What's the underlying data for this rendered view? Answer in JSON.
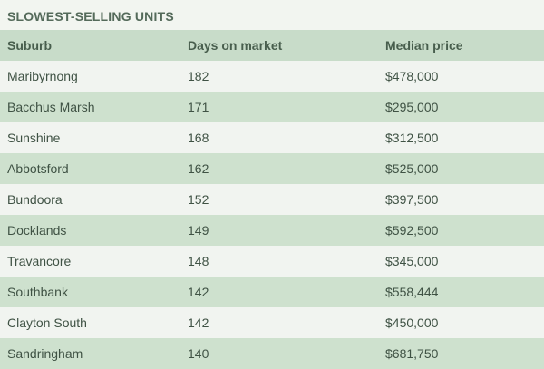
{
  "title": "SLOWEST-SELLING UNITS",
  "table": {
    "headers": [
      "Suburb",
      "Days on market",
      "Median price"
    ],
    "rows": [
      [
        "Maribyrnong",
        "182",
        "$478,000"
      ],
      [
        "Bacchus Marsh",
        "171",
        "$295,000"
      ],
      [
        "Sunshine",
        "168",
        "$312,500"
      ],
      [
        "Abbotsford",
        "162",
        "$525,000"
      ],
      [
        "Bundoora",
        "152",
        "$397,500"
      ],
      [
        "Docklands",
        "149",
        "$592,500"
      ],
      [
        "Travancore",
        "148",
        "$345,000"
      ],
      [
        "Southbank",
        "142",
        "$558,444"
      ],
      [
        "Clayton South",
        "142",
        "$450,000"
      ],
      [
        "Sandringham",
        "140",
        "$681,750"
      ]
    ]
  },
  "colors": {
    "header_bg": "#c8dcc9",
    "row_light": "#f1f4f0",
    "row_dark": "#cee1ce",
    "title_text": "#546a5a"
  }
}
